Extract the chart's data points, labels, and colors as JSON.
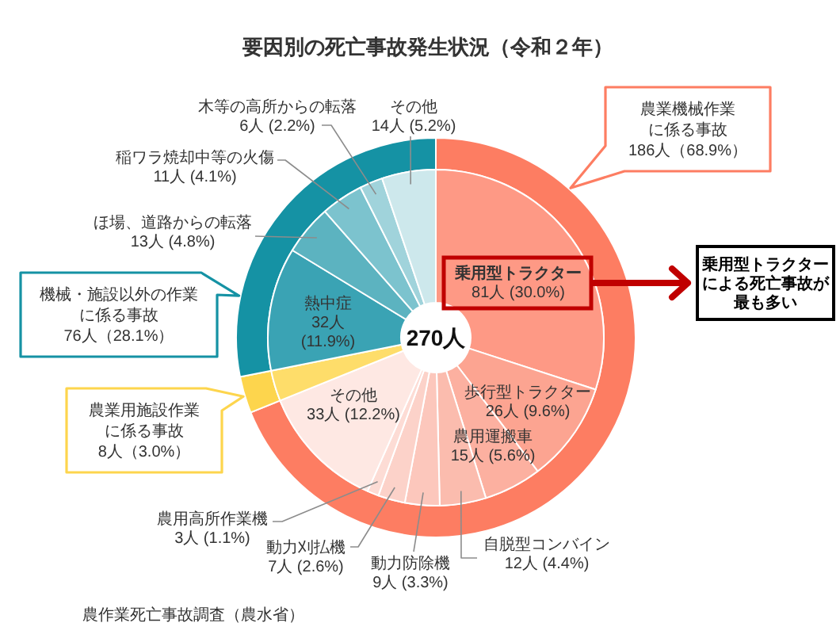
{
  "chart_data": [
    {
      "type": "donut",
      "title": "要因別の死亡事故発生状況（令和２年）",
      "categories": [
        "農業機械作業に係る事故",
        "農業用施設作業に係る事故",
        "機械・施設以外の作業に係る事故"
      ],
      "values": [
        186,
        8,
        76
      ],
      "colors": [
        "#fd7d62",
        "#fdd54d",
        "#1592a4"
      ],
      "value_labels": [
        "186人（68.9%）",
        "8人（3.0%）",
        "76人（28.1%）"
      ],
      "annotations": [
        "農作業死亡事故調査（農水省）"
      ]
    },
    {
      "type": "donut",
      "categories": [
        "乗用型トラクター",
        "歩行型トラクター",
        "農用運搬車",
        "自脱型コンバイン",
        "動力防除機",
        "動力刈払機",
        "農用高所作業機",
        "その他",
        null,
        "熱中症",
        "ほ場、道路からの転落",
        "稲ワラ焼却中等の火傷",
        "木等の高所からの転落",
        "その他"
      ],
      "values": [
        81,
        26,
        15,
        12,
        9,
        7,
        3,
        33,
        8,
        32,
        13,
        11,
        6,
        14
      ],
      "colors": [
        "#fe9985",
        "#fca491",
        "#fcb0a0",
        "#fbbcae",
        "#fcc7bc",
        "#fcd2c9",
        "#fddcd5",
        "#fee8e3",
        "#fedd6a",
        "#3aa3b4",
        "#5cb3c0",
        "#7cc3ce",
        "#a0d3db",
        "#cde8ec"
      ],
      "value_labels": [
        "81人 (30.0%)",
        "26人 (9.6%)",
        "15人 (5.6%)",
        "12人 (4.4%)",
        "9人 (3.3%)",
        "7人 (2.6%)",
        "3人 (1.1%)",
        "33人 (12.2%)",
        null,
        "32人 (11.9%)",
        "13人 (4.8%)",
        "11人 (4.1%)",
        "6人 (2.2%)",
        "14人 (5.2%)"
      ],
      "annotations": [
        "270人",
        "乗用型トラクターによる死亡事故が最も多い"
      ]
    }
  ]
}
